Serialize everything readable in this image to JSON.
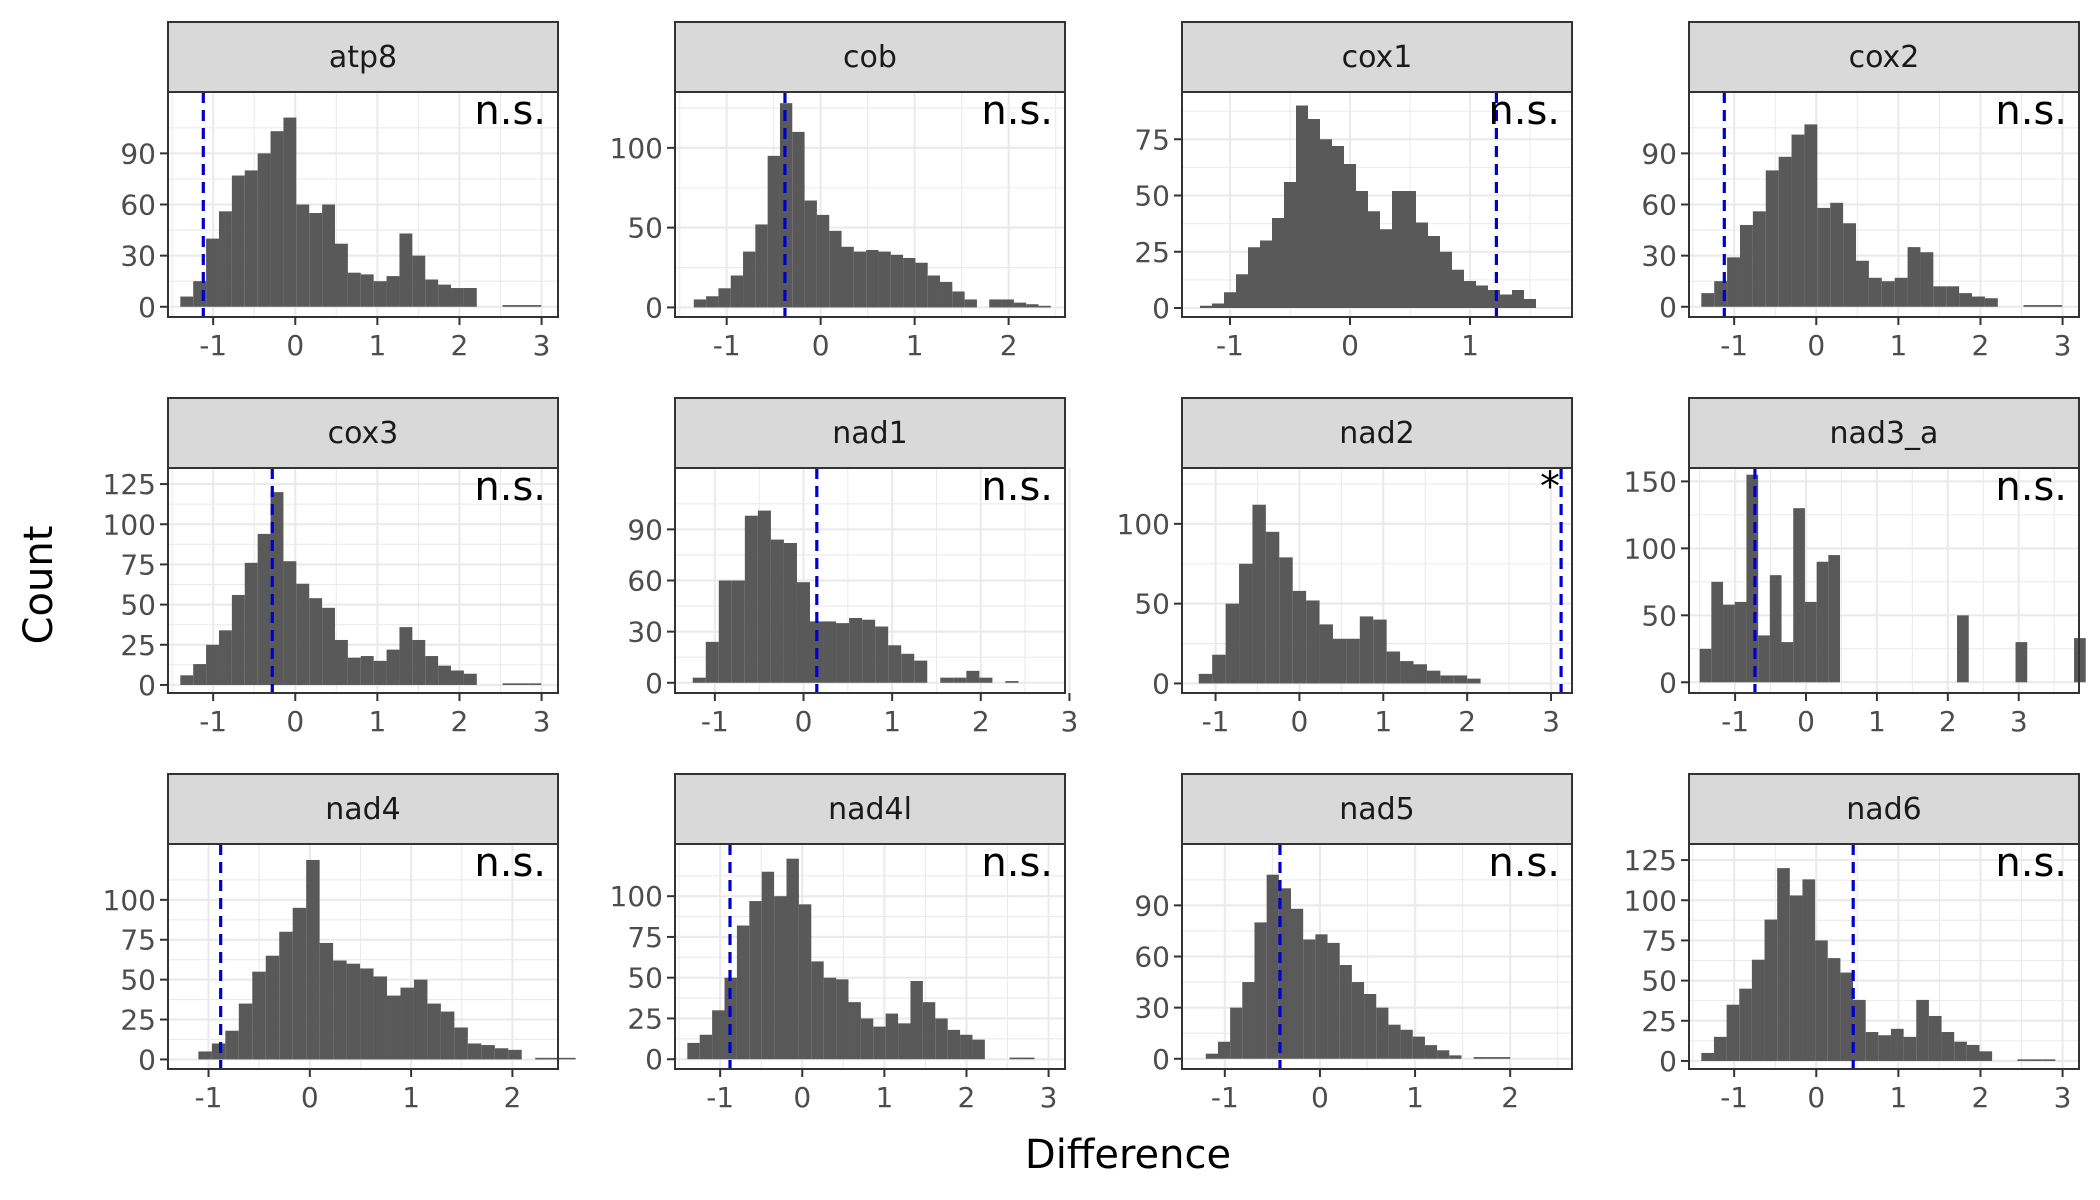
{
  "chart_data": {
    "type": "histogram-facets",
    "xlabel": "Difference",
    "ylabel": "Count",
    "colors": {
      "bar": "#595959",
      "observed_line": "#0000cc",
      "strip_fill": "#d9d9d9",
      "grid": "#ebebeb",
      "border": "#333333"
    },
    "panels": [
      {
        "name": "atp8",
        "label": "n.s.",
        "observed": -1.12,
        "xlim": [
          -1.55,
          3.2
        ],
        "xticks": [
          -1,
          0,
          1,
          2,
          3
        ],
        "ylim": [
          -6,
          126
        ],
        "yticks": [
          0,
          30,
          60,
          90
        ],
        "bin_start": -1.4,
        "bin_width": 0.157,
        "counts": [
          6,
          15,
          40,
          56,
          77,
          80,
          90,
          103,
          111,
          60,
          55,
          60,
          37,
          20,
          19,
          15,
          18,
          43,
          30,
          16,
          13,
          11,
          11,
          0,
          0,
          1,
          1,
          1
        ]
      },
      {
        "name": "cob",
        "label": "n.s.",
        "observed": -0.38,
        "xlim": [
          -1.55,
          2.6
        ],
        "xticks": [
          -1,
          0,
          1,
          2
        ],
        "ylim": [
          -6,
          135
        ],
        "yticks": [
          0,
          50,
          100
        ],
        "bin_start": -1.35,
        "bin_width": 0.131,
        "counts": [
          5,
          7,
          12,
          20,
          35,
          52,
          95,
          128,
          110,
          67,
          58,
          48,
          38,
          35,
          36,
          35,
          33,
          31,
          28,
          20,
          16,
          10,
          5,
          0,
          5,
          5,
          3,
          2,
          1
        ]
      },
      {
        "name": "cox1",
        "label": "n.s.",
        "observed": 1.22,
        "xlim": [
          -1.4,
          1.85
        ],
        "xticks": [
          -1,
          0,
          1
        ],
        "ylim": [
          -4,
          96
        ],
        "yticks": [
          0,
          25,
          50,
          75
        ],
        "bin_start": -1.25,
        "bin_width": 0.1,
        "counts": [
          1,
          2,
          7,
          15,
          27,
          30,
          40,
          56,
          90,
          84,
          75,
          72,
          64,
          52,
          43,
          35,
          52,
          52,
          38,
          32,
          25,
          17,
          12,
          10,
          8,
          6,
          8,
          4,
          0
        ]
      },
      {
        "name": "cox2",
        "label": "n.s.",
        "observed": -1.12,
        "xlim": [
          -1.55,
          3.2
        ],
        "xticks": [
          -1,
          0,
          1,
          2,
          3
        ],
        "ylim": [
          -6,
          126
        ],
        "yticks": [
          0,
          30,
          60,
          90
        ],
        "bin_start": -1.4,
        "bin_width": 0.157,
        "counts": [
          8,
          15,
          29,
          48,
          56,
          80,
          88,
          101,
          107,
          58,
          61,
          49,
          27,
          17,
          15,
          17,
          35,
          32,
          12,
          12,
          8,
          6,
          5,
          0,
          0,
          1,
          1,
          1
        ]
      },
      {
        "name": "cox3",
        "label": "n.s.",
        "observed": -0.28,
        "xlim": [
          -1.55,
          3.2
        ],
        "xticks": [
          -1,
          0,
          1,
          2,
          3
        ],
        "ylim": [
          -5,
          135
        ],
        "yticks": [
          0,
          25,
          50,
          75,
          100,
          125
        ],
        "bin_start": -1.4,
        "bin_width": 0.157,
        "counts": [
          6,
          13,
          25,
          34,
          56,
          76,
          94,
          120,
          77,
          63,
          54,
          48,
          28,
          17,
          18,
          15,
          22,
          36,
          28,
          18,
          12,
          9,
          7,
          0,
          0,
          1,
          1,
          1
        ]
      },
      {
        "name": "nad1",
        "label": "n.s.",
        "observed": 0.15,
        "xlim": [
          -1.45,
          2.95
        ],
        "xticks": [
          -1,
          0,
          1,
          2,
          3
        ],
        "ylim": [
          -6,
          126
        ],
        "yticks": [
          0,
          30,
          60,
          90
        ],
        "bin_start": -1.25,
        "bin_width": 0.147,
        "counts": [
          3,
          24,
          60,
          60,
          98,
          101,
          84,
          82,
          59,
          36,
          36,
          35,
          38,
          37,
          33,
          22,
          17,
          13,
          0,
          3,
          3,
          7,
          3,
          0,
          1
        ]
      },
      {
        "name": "nad2",
        "label": "*",
        "observed": 3.12,
        "xlim": [
          -1.4,
          3.25
        ],
        "xticks": [
          -1,
          0,
          1,
          2,
          3
        ],
        "ylim": [
          -6,
          135
        ],
        "yticks": [
          0,
          50,
          100
        ],
        "bin_start": -1.2,
        "bin_width": 0.16,
        "counts": [
          6,
          18,
          50,
          75,
          112,
          95,
          79,
          58,
          52,
          37,
          28,
          28,
          42,
          40,
          20,
          14,
          12,
          8,
          5,
          5,
          3,
          0
        ]
      },
      {
        "name": "nad3_a",
        "label": "n.s.",
        "observed": -0.72,
        "xlim": [
          -1.65,
          3.85
        ],
        "xticks": [
          -1,
          0,
          1,
          2,
          3
        ],
        "ylim": [
          -8,
          160
        ],
        "yticks": [
          0,
          50,
          100,
          150
        ],
        "bin_start": -1.5,
        "bin_width": 0.165,
        "counts": [
          25,
          75,
          58,
          60,
          155,
          35,
          80,
          30,
          130,
          60,
          90,
          95,
          0,
          0,
          0,
          0,
          0,
          0,
          0,
          0,
          0,
          0,
          50,
          0,
          0,
          0,
          0,
          30,
          0,
          0,
          0,
          0,
          33
        ]
      },
      {
        "name": "nad4",
        "label": "n.s.",
        "observed": -0.88,
        "xlim": [
          -1.4,
          2.45
        ],
        "xticks": [
          -1,
          0,
          1,
          2
        ],
        "ylim": [
          -6,
          135
        ],
        "yticks": [
          0,
          25,
          50,
          75,
          100
        ],
        "bin_start": -1.1,
        "bin_width": 0.133,
        "counts": [
          5,
          10,
          18,
          35,
          55,
          65,
          80,
          95,
          125,
          73,
          62,
          60,
          57,
          52,
          40,
          45,
          50,
          35,
          30,
          20,
          10,
          9,
          7,
          6,
          0,
          1,
          1,
          1
        ]
      },
      {
        "name": "nad4l",
        "label": "n.s.",
        "observed": -0.88,
        "xlim": [
          -1.55,
          3.2
        ],
        "xticks": [
          -1,
          0,
          1,
          2,
          3
        ],
        "ylim": [
          -6,
          132
        ],
        "yticks": [
          0,
          25,
          50,
          75,
          100
        ],
        "bin_start": -1.4,
        "bin_width": 0.151,
        "counts": [
          10,
          15,
          30,
          50,
          82,
          97,
          115,
          100,
          123,
          95,
          60,
          50,
          49,
          35,
          25,
          20,
          28,
          22,
          48,
          35,
          25,
          18,
          15,
          12,
          0,
          0,
          1,
          1
        ]
      },
      {
        "name": "nad5",
        "label": "n.s.",
        "observed": -0.42,
        "xlim": [
          -1.45,
          2.65
        ],
        "xticks": [
          -1,
          0,
          1,
          2
        ],
        "ylim": [
          -6,
          126
        ],
        "yticks": [
          0,
          30,
          60,
          90
        ],
        "bin_start": -1.2,
        "bin_width": 0.128,
        "counts": [
          3,
          10,
          30,
          45,
          80,
          108,
          100,
          88,
          70,
          73,
          68,
          55,
          45,
          38,
          30,
          20,
          17,
          13,
          8,
          5,
          2,
          0,
          1,
          1,
          1
        ]
      },
      {
        "name": "nad6",
        "label": "n.s.",
        "observed": 0.45,
        "xlim": [
          -1.55,
          3.2
        ],
        "xticks": [
          -1,
          0,
          1,
          2,
          3
        ],
        "ylim": [
          -5,
          135
        ],
        "yticks": [
          0,
          25,
          50,
          75,
          100,
          125
        ],
        "bin_start": -1.4,
        "bin_width": 0.154,
        "counts": [
          5,
          15,
          35,
          45,
          63,
          88,
          120,
          103,
          113,
          75,
          64,
          55,
          38,
          18,
          16,
          20,
          15,
          38,
          28,
          18,
          12,
          10,
          6,
          0,
          0,
          1,
          1,
          1
        ]
      }
    ]
  }
}
